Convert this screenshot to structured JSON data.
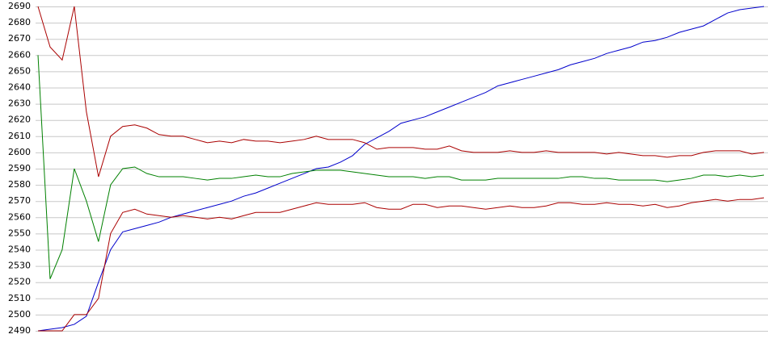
{
  "chart_data": {
    "type": "line",
    "ylim": [
      2490,
      2690
    ],
    "yticks": [
      2490,
      2500,
      2510,
      2520,
      2530,
      2540,
      2550,
      2560,
      2570,
      2580,
      2590,
      2600,
      2610,
      2620,
      2630,
      2640,
      2650,
      2660,
      2670,
      2680,
      2690
    ],
    "grid": true,
    "series": [
      {
        "color": "#0000cc",
        "values": [
          2490,
          2491,
          2492,
          2494,
          2499,
          2520,
          2540,
          2551,
          2553,
          2555,
          2557,
          2560,
          2562,
          2564,
          2566,
          2568,
          2570,
          2573,
          2575,
          2578,
          2581,
          2584,
          2587,
          2590,
          2591,
          2594,
          2598,
          2605,
          2609,
          2613,
          2618,
          2620,
          2622,
          2625,
          2628,
          2631,
          2634,
          2637,
          2641,
          2643,
          2645,
          2647,
          2649,
          2651,
          2654,
          2656,
          2658,
          2661,
          2663,
          2665,
          2668,
          2669,
          2671,
          2674,
          2676,
          2678,
          2682,
          2686,
          2688,
          2689,
          2690
        ]
      },
      {
        "color": "#aa0000",
        "values": [
          2690,
          2665,
          2657,
          2690,
          2625,
          2585,
          2610,
          2616,
          2617,
          2615,
          2611,
          2610,
          2610,
          2608,
          2606,
          2607,
          2606,
          2608,
          2607,
          2607,
          2606,
          2607,
          2608,
          2610,
          2608,
          2608,
          2608,
          2606,
          2602,
          2603,
          2603,
          2603,
          2602,
          2602,
          2604,
          2601,
          2600,
          2600,
          2600,
          2601,
          2600,
          2600,
          2601,
          2600,
          2600,
          2600,
          2600,
          2599,
          2600,
          2599,
          2598,
          2598,
          2597,
          2598,
          2598,
          2600,
          2601,
          2601,
          2601,
          2599,
          2600
        ]
      },
      {
        "color": "#008000",
        "values": [
          2660,
          2522,
          2540,
          2590,
          2570,
          2545,
          2580,
          2590,
          2591,
          2587,
          2585,
          2585,
          2585,
          2584,
          2583,
          2584,
          2584,
          2585,
          2586,
          2585,
          2585,
          2587,
          2588,
          2589,
          2589,
          2589,
          2588,
          2587,
          2586,
          2585,
          2585,
          2585,
          2584,
          2585,
          2585,
          2583,
          2583,
          2583,
          2584,
          2584,
          2584,
          2584,
          2584,
          2584,
          2585,
          2585,
          2584,
          2584,
          2583,
          2583,
          2583,
          2583,
          2582,
          2583,
          2584,
          2586,
          2586,
          2585,
          2586,
          2585,
          2586
        ]
      },
      {
        "color": "#aa0000",
        "values": [
          2490,
          2490,
          2490,
          2500,
          2500,
          2510,
          2550,
          2563,
          2565,
          2562,
          2561,
          2560,
          2561,
          2560,
          2559,
          2560,
          2559,
          2561,
          2563,
          2563,
          2563,
          2565,
          2567,
          2569,
          2568,
          2568,
          2568,
          2569,
          2566,
          2565,
          2565,
          2568,
          2568,
          2566,
          2567,
          2567,
          2566,
          2565,
          2566,
          2567,
          2566,
          2566,
          2567,
          2569,
          2569,
          2568,
          2568,
          2569,
          2568,
          2568,
          2567,
          2568,
          2566,
          2567,
          2569,
          2570,
          2571,
          2570,
          2571,
          2571,
          2572
        ]
      }
    ]
  }
}
